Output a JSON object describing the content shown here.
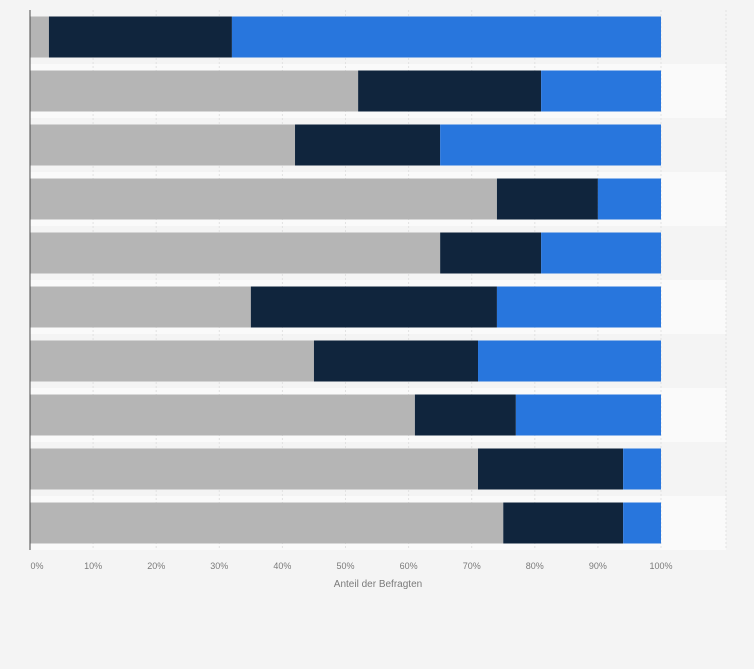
{
  "chart_data": {
    "type": "bar",
    "orientation": "horizontal",
    "stacked": true,
    "categories": [
      "",
      "",
      "",
      "",
      "",
      "",
      "",
      "",
      "",
      ""
    ],
    "series": [
      {
        "color": "#b5b5b5",
        "values": [
          3,
          52,
          42,
          74,
          65,
          35,
          45,
          61,
          71,
          75
        ]
      },
      {
        "color": "#10253d",
        "values": [
          29,
          29,
          23,
          16,
          16,
          39,
          26,
          16,
          23,
          19
        ]
      },
      {
        "color": "#2876dd",
        "values": [
          68,
          19,
          35,
          10,
          19,
          26,
          29,
          23,
          6,
          6
        ]
      }
    ],
    "xlim": [
      0,
      100
    ],
    "xticks": [
      "0%",
      "10%",
      "20%",
      "30%",
      "40%",
      "50%",
      "60%",
      "70%",
      "80%",
      "90%",
      "100%"
    ],
    "xlabel": "Anteil der Befragten",
    "grid": true,
    "colors": {
      "background": "#f4f4f4",
      "band_alt": "#fafafa",
      "gridline": "#e2e2e2",
      "axis": "#4a4a4a",
      "tick_text": "#7a7a7a"
    }
  }
}
